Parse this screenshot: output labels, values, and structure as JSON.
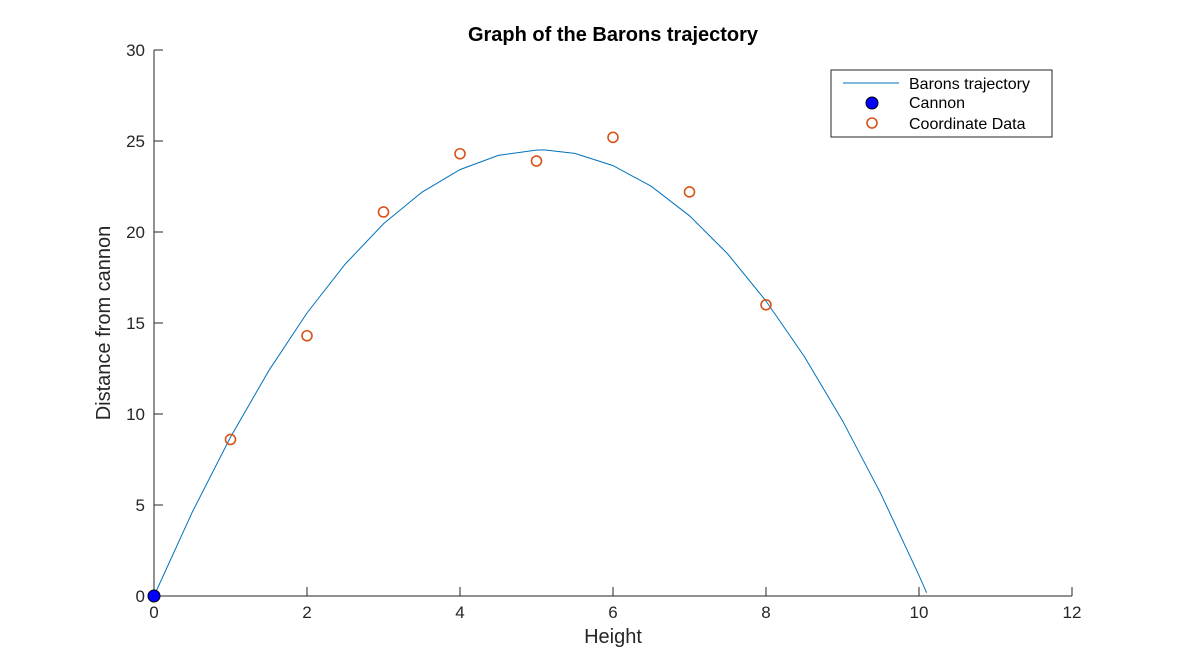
{
  "chart_data": {
    "type": "line",
    "title": "Graph of the Barons trajectory",
    "xlabel": "Height",
    "ylabel": "Distance from cannon",
    "xlim": [
      0,
      12
    ],
    "ylim": [
      0,
      30
    ],
    "xticks": [
      0,
      2,
      4,
      6,
      8,
      10,
      12
    ],
    "yticks": [
      0,
      5,
      10,
      15,
      20,
      25,
      30
    ],
    "grid": false,
    "legend_position": "top-right",
    "series": [
      {
        "name": "Barons trajectory",
        "kind": "line",
        "color": "#0072BD",
        "x": [
          0,
          0.5,
          1,
          1.5,
          2,
          2.5,
          3,
          3.5,
          4,
          4.5,
          5,
          5.1,
          5.5,
          6,
          6.5,
          7,
          7.5,
          8,
          8.5,
          9,
          9.5,
          10,
          10.1
        ],
        "y": [
          0,
          4.61,
          8.73,
          12.38,
          15.55,
          18.24,
          20.45,
          22.18,
          23.43,
          24.21,
          24.5,
          24.51,
          24.32,
          23.65,
          22.51,
          20.89,
          18.79,
          16.21,
          13.16,
          9.63,
          5.62,
          1.13,
          0.18
        ]
      },
      {
        "name": "Cannon",
        "kind": "marker",
        "marker": "filled-circle",
        "color": "#0000FF",
        "edge_color": "#000000",
        "x": [
          0
        ],
        "y": [
          0
        ]
      },
      {
        "name": "Coordinate Data",
        "kind": "marker",
        "marker": "open-circle",
        "color": "#D95319",
        "x": [
          1,
          2,
          3,
          4,
          5,
          6,
          7,
          8
        ],
        "y": [
          8.6,
          14.3,
          21.1,
          24.3,
          23.9,
          25.2,
          22.2,
          16.0
        ]
      }
    ]
  }
}
